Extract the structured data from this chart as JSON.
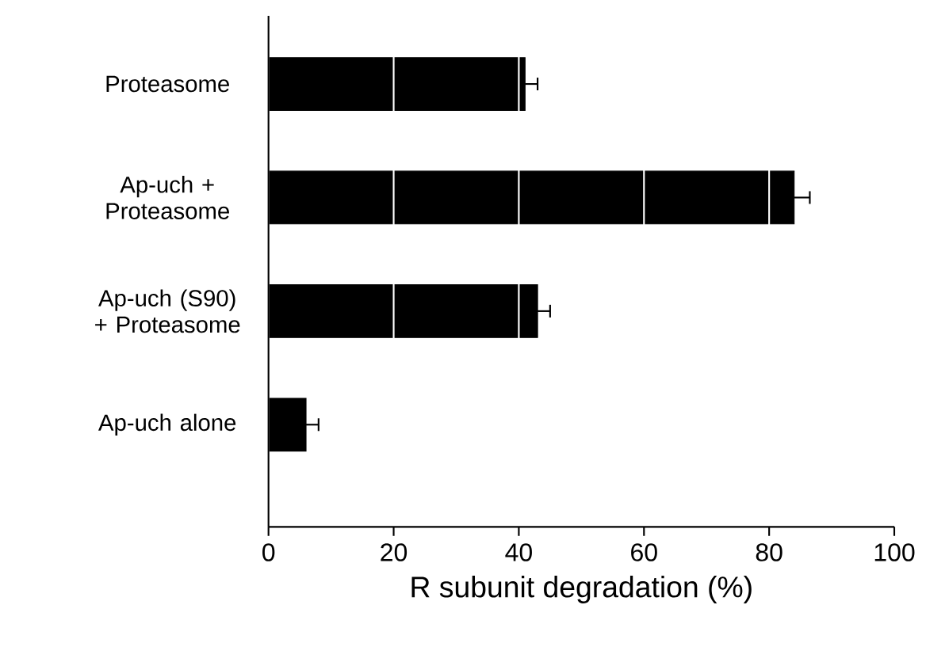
{
  "chart_data": {
    "type": "bar",
    "orientation": "horizontal",
    "xlabel": "R subunit degradation (%)",
    "categories": [
      "Proteasome",
      "Ap-uch + Proteasome",
      "Ap-uch (S90) + Proteasome",
      "Ap-uch alone"
    ],
    "values": [
      41,
      84,
      43,
      6
    ],
    "errors": [
      2,
      2.5,
      2,
      2
    ],
    "color": "#000000",
    "xlim": [
      0,
      100
    ],
    "xticks": [
      0,
      20,
      40,
      60,
      80,
      100
    ],
    "grid": "x"
  }
}
